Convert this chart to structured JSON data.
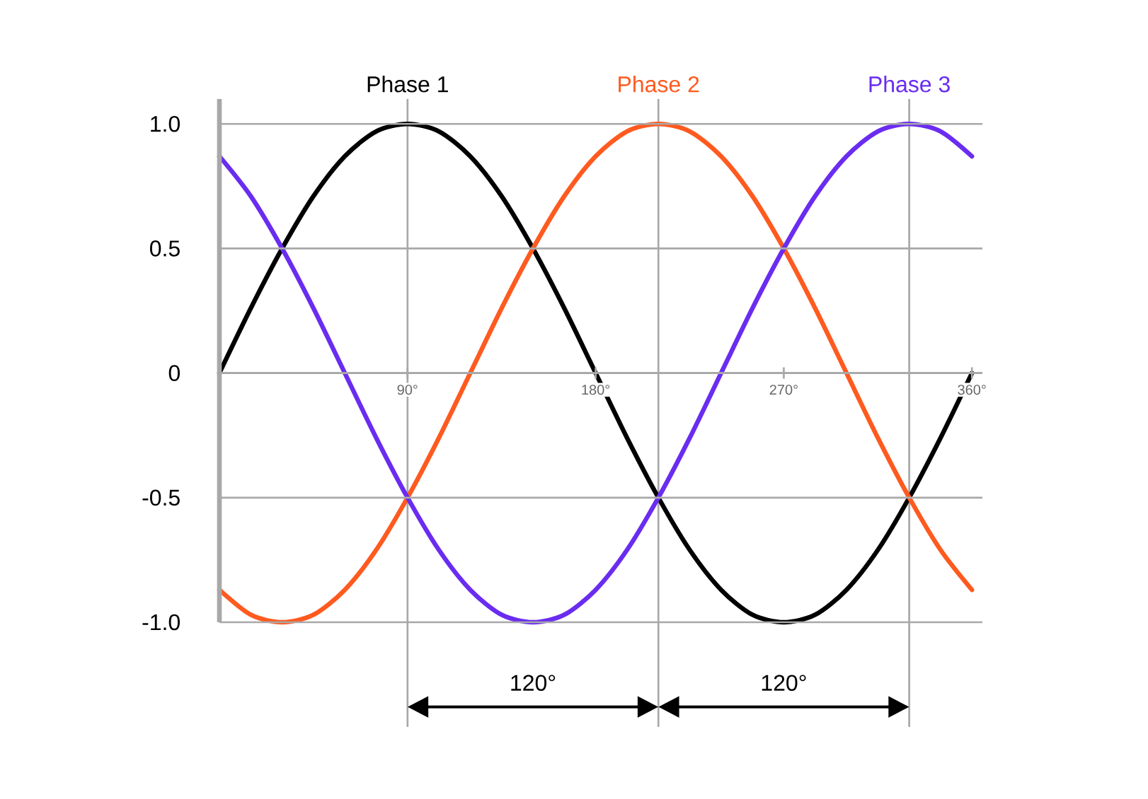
{
  "chart_data": {
    "type": "line",
    "x": [
      0,
      15,
      30,
      45,
      60,
      75,
      90,
      105,
      120,
      135,
      150,
      165,
      180,
      195,
      210,
      225,
      240,
      255,
      270,
      285,
      300,
      315,
      330,
      345,
      360
    ],
    "series": [
      {
        "name": "Phase 1",
        "color": "#000000",
        "values": [
          0,
          0.26,
          0.5,
          0.71,
          0.87,
          0.97,
          1,
          0.97,
          0.87,
          0.71,
          0.5,
          0.26,
          0,
          -0.26,
          -0.5,
          -0.71,
          -0.87,
          -0.97,
          -1,
          -0.97,
          -0.87,
          -0.71,
          -0.5,
          -0.26,
          0
        ]
      },
      {
        "name": "Phase 2",
        "color": "#ff5a1f",
        "values": [
          -0.87,
          -0.97,
          -1,
          -0.97,
          -0.87,
          -0.71,
          -0.5,
          -0.26,
          0,
          0.26,
          0.5,
          0.71,
          0.87,
          0.97,
          1,
          0.97,
          0.87,
          0.71,
          0.5,
          0.26,
          0,
          -0.26,
          -0.5,
          -0.71,
          -0.87
        ]
      },
      {
        "name": "Phase 3",
        "color": "#6a2cf0",
        "values": [
          0.87,
          0.71,
          0.5,
          0.26,
          0,
          -0.26,
          -0.5,
          -0.71,
          -0.87,
          -0.97,
          -1,
          -0.97,
          -0.87,
          -0.71,
          -0.5,
          -0.26,
          0,
          0.26,
          0.5,
          0.71,
          0.87,
          0.97,
          1,
          0.97,
          0.87
        ]
      }
    ],
    "xlim": [
      0,
      365
    ],
    "ylim": [
      -1,
      1.1
    ],
    "xticks": [
      {
        "value": 90,
        "label": "90°"
      },
      {
        "value": 180,
        "label": "180°"
      },
      {
        "value": 270,
        "label": "270°"
      },
      {
        "value": 360,
        "label": "360°"
      }
    ],
    "yticks": [
      {
        "value": -1,
        "label": "-1.0"
      },
      -0.5,
      0,
      0.5,
      {
        "value": 1,
        "label": "1.0"
      }
    ],
    "grid": "y",
    "marker": "none",
    "line_style": "solid",
    "ref_lines": [
      {
        "axis": "x",
        "value": 90
      },
      {
        "axis": "x",
        "value": 210
      },
      {
        "axis": "x",
        "value": 330
      }
    ],
    "annotations": [
      "120°",
      "120°"
    ]
  }
}
